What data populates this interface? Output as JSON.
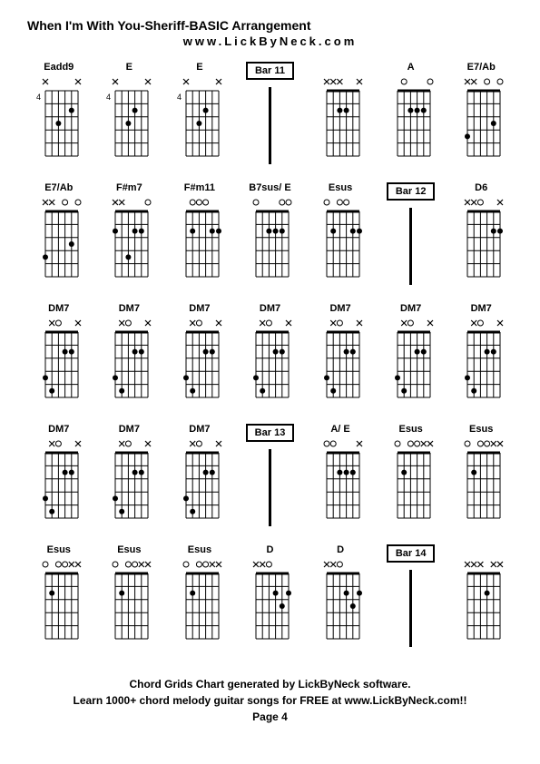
{
  "title": "When I'm With You-Sheriff-BASIC Arrangement",
  "subtitle": "www.LickByNeck.com",
  "footer_line1": "Chord Grids Chart generated by LickByNeck software.",
  "footer_line2": "Learn 1000+ chord melody guitar songs for FREE at www.LickByNeck.com!!",
  "page_label": "Page 4",
  "diagram_style": {
    "strings": 6,
    "frets": 5,
    "grid_color": "#000000",
    "dot_color": "#000000",
    "background": "#ffffff",
    "line_width": 1,
    "dot_radius": 3
  },
  "cells": [
    {
      "type": "chord",
      "label": "Eadd9",
      "fret_marker": "4",
      "nut": [
        "x",
        "",
        "",
        "",
        "",
        "x"
      ],
      "dots": [
        [
          3,
          3
        ],
        [
          2,
          5
        ]
      ]
    },
    {
      "type": "chord",
      "label": "E",
      "fret_marker": "4",
      "nut": [
        "x",
        "",
        "",
        "",
        "",
        "x"
      ],
      "dots": [
        [
          3,
          3
        ],
        [
          2,
          4
        ]
      ]
    },
    {
      "type": "chord",
      "label": "E",
      "fret_marker": "4",
      "nut": [
        "x",
        "",
        "",
        "",
        "",
        "x"
      ],
      "dots": [
        [
          3,
          3
        ],
        [
          2,
          4
        ]
      ]
    },
    {
      "type": "bar",
      "label": "Bar 11"
    },
    {
      "type": "chord",
      "label": "",
      "fret_marker": "",
      "nut": [
        "x",
        "x",
        "x",
        "",
        "",
        "x"
      ],
      "dots": [
        [
          2,
          3
        ],
        [
          2,
          4
        ]
      ]
    },
    {
      "type": "chord",
      "label": "A",
      "fret_marker": "",
      "nut": [
        "",
        "o",
        "",
        "",
        "",
        "o"
      ],
      "dots": [
        [
          2,
          3
        ],
        [
          2,
          4
        ],
        [
          2,
          5
        ]
      ]
    },
    {
      "type": "chord",
      "label": "E7/Ab",
      "fret_marker": "",
      "nut": [
        "x",
        "x",
        "",
        "o",
        "",
        "o"
      ],
      "dots": [
        [
          4,
          1
        ],
        [
          3,
          5
        ]
      ]
    },
    {
      "type": "chord",
      "label": "E7/Ab",
      "fret_marker": "",
      "nut": [
        "x",
        "x",
        "",
        "o",
        "",
        "o"
      ],
      "dots": [
        [
          4,
          1
        ],
        [
          3,
          5
        ]
      ]
    },
    {
      "type": "chord",
      "label": "F#m7",
      "fret_marker": "",
      "nut": [
        "x",
        "x",
        "",
        "",
        "",
        "o"
      ],
      "dots": [
        [
          2,
          4
        ],
        [
          2,
          5
        ],
        [
          2,
          1
        ],
        [
          4,
          3
        ]
      ]
    },
    {
      "type": "chord",
      "label": "F#m11",
      "fret_marker": "",
      "nut": [
        "",
        "o",
        "o",
        "o",
        "",
        ""
      ],
      "dots": [
        [
          2,
          2
        ],
        [
          2,
          5
        ],
        [
          2,
          6
        ]
      ]
    },
    {
      "type": "chord",
      "label": "B7sus/ E",
      "fret_marker": "",
      "nut": [
        "o",
        "",
        "",
        "",
        "o",
        "o"
      ],
      "dots": [
        [
          2,
          3
        ],
        [
          2,
          4
        ],
        [
          2,
          5
        ]
      ]
    },
    {
      "type": "chord",
      "label": "Esus",
      "fret_marker": "",
      "nut": [
        "o",
        "",
        "o",
        "o",
        "",
        ""
      ],
      "dots": [
        [
          2,
          2
        ],
        [
          2,
          5
        ],
        [
          2,
          6
        ]
      ]
    },
    {
      "type": "bar",
      "label": "Bar 12"
    },
    {
      "type": "chord",
      "label": "D6",
      "fret_marker": "",
      "nut": [
        "x",
        "x",
        "o",
        "",
        "",
        "x"
      ],
      "dots": [
        [
          2,
          5
        ],
        [
          2,
          6
        ]
      ]
    },
    {
      "type": "chord",
      "label": "DM7",
      "fret_marker": "",
      "nut": [
        "",
        "x",
        "o",
        "",
        "",
        "x"
      ],
      "dots": [
        [
          4,
          1
        ],
        [
          5,
          2
        ],
        [
          2,
          4
        ],
        [
          2,
          5
        ]
      ]
    },
    {
      "type": "chord",
      "label": "DM7",
      "fret_marker": "",
      "nut": [
        "",
        "x",
        "o",
        "",
        "",
        "x"
      ],
      "dots": [
        [
          4,
          1
        ],
        [
          5,
          2
        ],
        [
          2,
          4
        ],
        [
          2,
          5
        ]
      ]
    },
    {
      "type": "chord",
      "label": "DM7",
      "fret_marker": "",
      "nut": [
        "",
        "x",
        "o",
        "",
        "",
        "x"
      ],
      "dots": [
        [
          4,
          1
        ],
        [
          5,
          2
        ],
        [
          2,
          4
        ],
        [
          2,
          5
        ]
      ]
    },
    {
      "type": "chord",
      "label": "DM7",
      "fret_marker": "",
      "nut": [
        "",
        "x",
        "o",
        "",
        "",
        "x"
      ],
      "dots": [
        [
          4,
          1
        ],
        [
          5,
          2
        ],
        [
          2,
          4
        ],
        [
          2,
          5
        ]
      ]
    },
    {
      "type": "chord",
      "label": "DM7",
      "fret_marker": "",
      "nut": [
        "",
        "x",
        "o",
        "",
        "",
        "x"
      ],
      "dots": [
        [
          4,
          1
        ],
        [
          5,
          2
        ],
        [
          2,
          4
        ],
        [
          2,
          5
        ]
      ]
    },
    {
      "type": "chord",
      "label": "DM7",
      "fret_marker": "",
      "nut": [
        "",
        "x",
        "o",
        "",
        "",
        "x"
      ],
      "dots": [
        [
          4,
          1
        ],
        [
          5,
          2
        ],
        [
          2,
          4
        ],
        [
          2,
          5
        ]
      ]
    },
    {
      "type": "chord",
      "label": "DM7",
      "fret_marker": "",
      "nut": [
        "",
        "x",
        "o",
        "",
        "",
        "x"
      ],
      "dots": [
        [
          4,
          1
        ],
        [
          5,
          2
        ],
        [
          2,
          4
        ],
        [
          2,
          5
        ]
      ]
    },
    {
      "type": "chord",
      "label": "DM7",
      "fret_marker": "",
      "nut": [
        "",
        "x",
        "o",
        "",
        "",
        "x"
      ],
      "dots": [
        [
          4,
          1
        ],
        [
          5,
          2
        ],
        [
          2,
          4
        ],
        [
          2,
          5
        ]
      ]
    },
    {
      "type": "chord",
      "label": "DM7",
      "fret_marker": "",
      "nut": [
        "",
        "x",
        "o",
        "",
        "",
        "x"
      ],
      "dots": [
        [
          4,
          1
        ],
        [
          5,
          2
        ],
        [
          2,
          4
        ],
        [
          2,
          5
        ]
      ]
    },
    {
      "type": "chord",
      "label": "DM7",
      "fret_marker": "",
      "nut": [
        "",
        "x",
        "o",
        "",
        "",
        "x"
      ],
      "dots": [
        [
          4,
          1
        ],
        [
          5,
          2
        ],
        [
          2,
          4
        ],
        [
          2,
          5
        ]
      ]
    },
    {
      "type": "bar",
      "label": "Bar 13"
    },
    {
      "type": "chord",
      "label": "A/ E",
      "fret_marker": "",
      "nut": [
        "o",
        "o",
        "",
        "",
        "",
        "x"
      ],
      "dots": [
        [
          2,
          3
        ],
        [
          2,
          4
        ],
        [
          2,
          5
        ]
      ]
    },
    {
      "type": "chord",
      "label": "Esus",
      "fret_marker": "",
      "nut": [
        "o",
        "",
        "o",
        "o",
        "x",
        "x"
      ],
      "dots": [
        [
          2,
          2
        ]
      ]
    },
    {
      "type": "chord",
      "label": "Esus",
      "fret_marker": "",
      "nut": [
        "o",
        "",
        "o",
        "o",
        "x",
        "x"
      ],
      "dots": [
        [
          2,
          2
        ]
      ]
    },
    {
      "type": "chord",
      "label": "Esus",
      "fret_marker": "",
      "nut": [
        "o",
        "",
        "o",
        "o",
        "x",
        "x"
      ],
      "dots": [
        [
          2,
          2
        ]
      ]
    },
    {
      "type": "chord",
      "label": "Esus",
      "fret_marker": "",
      "nut": [
        "o",
        "",
        "o",
        "o",
        "x",
        "x"
      ],
      "dots": [
        [
          2,
          2
        ]
      ]
    },
    {
      "type": "chord",
      "label": "Esus",
      "fret_marker": "",
      "nut": [
        "o",
        "",
        "o",
        "o",
        "x",
        "x"
      ],
      "dots": [
        [
          2,
          2
        ]
      ]
    },
    {
      "type": "chord",
      "label": "D",
      "fret_marker": "",
      "nut": [
        "x",
        "x",
        "o",
        "",
        "",
        ""
      ],
      "dots": [
        [
          2,
          4
        ],
        [
          3,
          5
        ],
        [
          2,
          6
        ]
      ]
    },
    {
      "type": "chord",
      "label": "D",
      "fret_marker": "",
      "nut": [
        "x",
        "x",
        "o",
        "",
        "",
        ""
      ],
      "dots": [
        [
          2,
          4
        ],
        [
          3,
          5
        ],
        [
          2,
          6
        ]
      ]
    },
    {
      "type": "bar",
      "label": "Bar 14"
    },
    {
      "type": "chord",
      "label": "",
      "fret_marker": "",
      "nut": [
        "x",
        "x",
        "x",
        "",
        "x",
        "x"
      ],
      "dots": [
        [
          2,
          4
        ]
      ]
    }
  ]
}
